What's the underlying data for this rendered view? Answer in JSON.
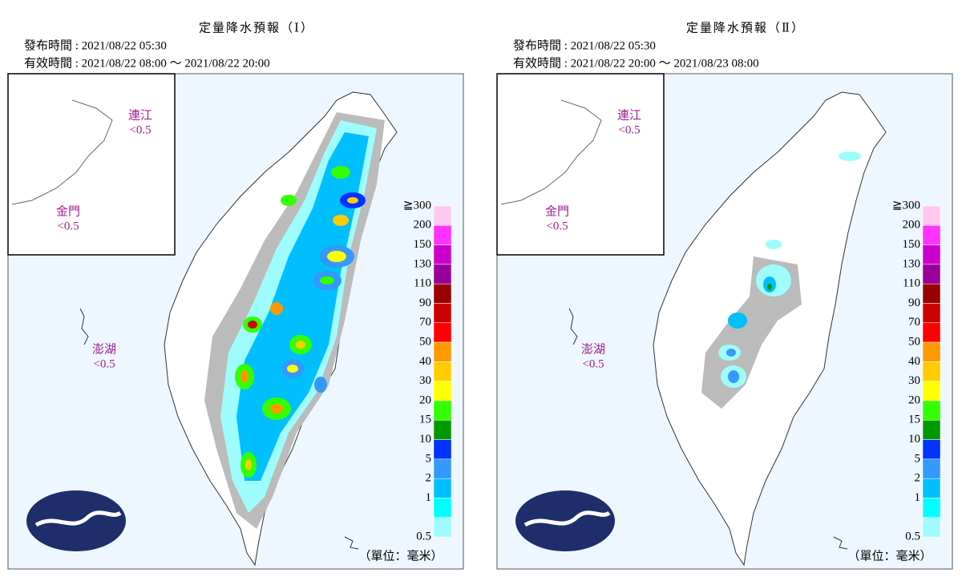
{
  "panels": [
    {
      "title": "定量降水預報（Ⅰ）",
      "issued": "發布時間 : 2021/08/22 05:30",
      "valid": "有效時間 : 2021/08/22 08:00 ～ 2021/08/22 20:00",
      "islands": [
        {
          "name": "連江",
          "value": "<0.5"
        },
        {
          "name": "金門",
          "value": "<0.5"
        },
        {
          "name": "澎湖",
          "value": "<0.5"
        }
      ],
      "unit": "（單位：毫米）"
    },
    {
      "title": "定量降水預報（Ⅱ）",
      "issued": "發布時間 : 2021/08/22 05:30",
      "valid": "有效時間 : 2021/08/22 20:00 ～ 2021/08/23 08:00",
      "islands": [
        {
          "name": "連江",
          "value": "<0.5"
        },
        {
          "name": "金門",
          "value": "<0.5"
        },
        {
          "name": "澎湖",
          "value": "<0.5"
        }
      ],
      "unit": "（單位：毫米）"
    }
  ],
  "legend": [
    {
      "label": "≧300",
      "color": "#ffc8f0"
    },
    {
      "label": "200",
      "color": "#ff33ff"
    },
    {
      "label": "150",
      "color": "#cc00cc"
    },
    {
      "label": "130",
      "color": "#990099"
    },
    {
      "label": "110",
      "color": "#990000"
    },
    {
      "label": "90",
      "color": "#cc0000"
    },
    {
      "label": "70",
      "color": "#ff0000"
    },
    {
      "label": "50",
      "color": "#ff9900"
    },
    {
      "label": "40",
      "color": "#ffcc00"
    },
    {
      "label": "30",
      "color": "#ffff00"
    },
    {
      "label": "20",
      "color": "#33ff00"
    },
    {
      "label": "15",
      "color": "#009900"
    },
    {
      "label": "10",
      "color": "#0033ff"
    },
    {
      "label": "5",
      "color": "#3399ff"
    },
    {
      "label": "2",
      "color": "#00bfff"
    },
    {
      "label": "1",
      "color": "#00ffff"
    },
    {
      "label": "0.5",
      "color": "#9ffcfc"
    }
  ]
}
